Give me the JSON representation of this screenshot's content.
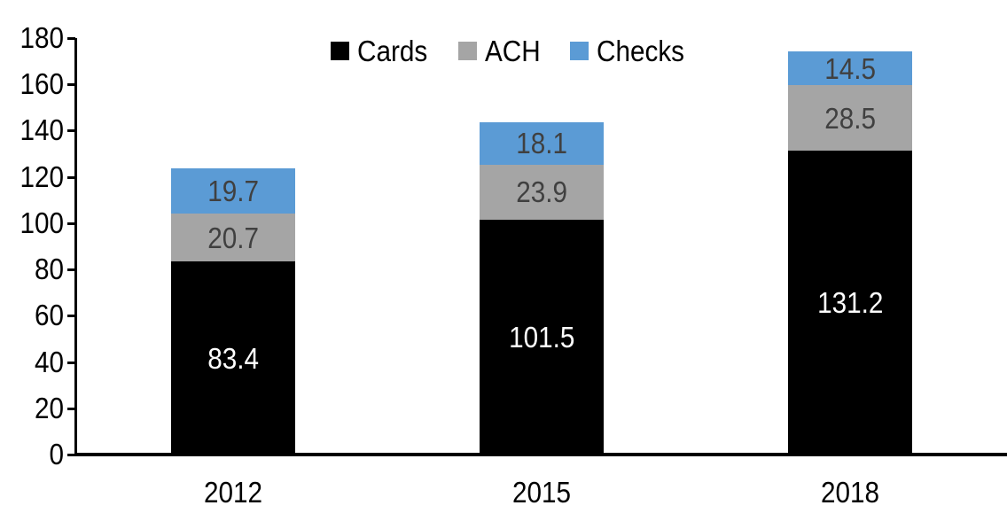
{
  "chart_data": {
    "type": "bar",
    "stacked": true,
    "title": "",
    "xlabel": "",
    "ylabel": "",
    "categories": [
      "2012",
      "2015",
      "2018"
    ],
    "series": [
      {
        "name": "Cards",
        "color": "#000000",
        "label_color": "#ffffff",
        "values": [
          83.4,
          101.5,
          131.2
        ]
      },
      {
        "name": "ACH",
        "color": "#a5a5a5",
        "label_color": "#404040",
        "values": [
          20.7,
          23.9,
          28.5
        ]
      },
      {
        "name": "Checks",
        "color": "#5b9bd5",
        "label_color": "#404040",
        "values": [
          19.7,
          18.1,
          14.5
        ]
      }
    ],
    "ylim": [
      0,
      180
    ],
    "yticks": [
      0,
      20,
      40,
      60,
      80,
      100,
      120,
      140,
      160,
      180
    ],
    "grid": false,
    "legend_position": "top",
    "data_labels": true,
    "label_decimals": 1,
    "axis_color": "#000000",
    "background": "#ffffff"
  }
}
